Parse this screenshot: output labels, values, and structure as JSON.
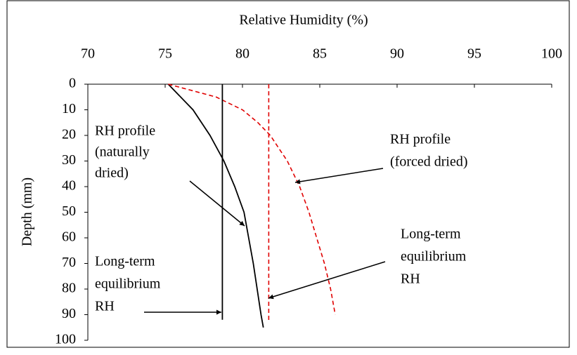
{
  "chart_data": {
    "type": "line",
    "xlabel": "Relative Humidity (%)",
    "ylabel": "Depth (mm)",
    "xlim": [
      70,
      100
    ],
    "xticks": [
      70,
      75,
      80,
      85,
      90,
      95,
      100
    ],
    "ylim": [
      0,
      100
    ],
    "yticks": [
      0,
      10,
      20,
      30,
      40,
      50,
      60,
      70,
      80,
      90,
      100
    ],
    "y_inverted": true,
    "x_axis_top": true,
    "series": [
      {
        "color": "#000000",
        "dash": false,
        "x": [
          75.2,
          76.8,
          77.9,
          78.8,
          79.5,
          80.1,
          80.4,
          80.7,
          80.95,
          81.2,
          81.35
        ],
        "y": [
          0,
          10,
          20,
          30,
          40,
          50,
          60,
          70,
          80,
          90,
          95
        ]
      },
      {
        "color": "#e00000",
        "dash": true,
        "x": [
          75.2,
          78.3,
          80.0,
          81.0,
          81.8,
          82.9,
          83.7,
          84.3,
          84.8,
          85.3,
          85.7,
          86.0
        ],
        "y": [
          0,
          5,
          10,
          15,
          20,
          30,
          40,
          50,
          60,
          70,
          80,
          90
        ]
      },
      {
        "color": "#000000",
        "dash": false,
        "x": [
          78.7,
          78.7
        ],
        "y": [
          0,
          92
        ]
      },
      {
        "color": "#e00000",
        "dash": true,
        "x": [
          81.7,
          81.7
        ],
        "y": [
          0,
          93
        ]
      }
    ],
    "annotations": [
      {
        "lines": [
          "RH profile",
          "(naturally",
          "dried)"
        ]
      },
      {
        "lines": [
          "RH profile",
          "(forced dried)"
        ]
      },
      {
        "lines": [
          "Long-term",
          "equilibrium",
          "RH"
        ]
      },
      {
        "lines": [
          "Long-term",
          "equilibrium",
          "RH"
        ]
      }
    ]
  }
}
